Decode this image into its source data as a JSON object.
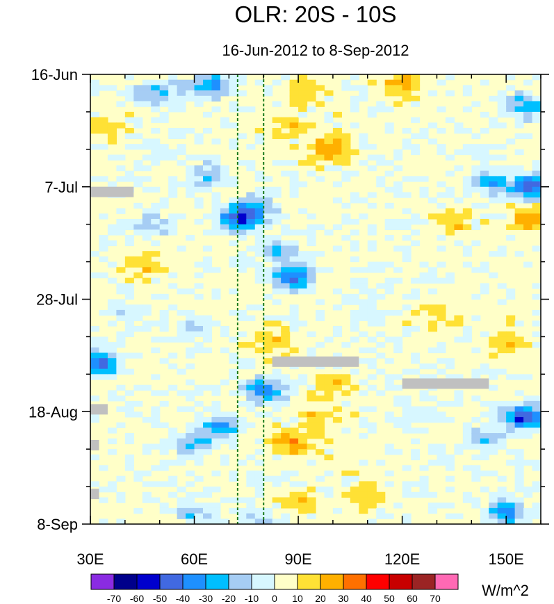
{
  "chart_data": {
    "type": "heatmap",
    "title": "OLR: 20S - 10S",
    "subtitle": "16-Jun-2012 to 8-Sep-2012",
    "x_axis": {
      "range": [
        30,
        160
      ],
      "ticks": [
        {
          "value": 30,
          "label": "30E"
        },
        {
          "value": 60,
          "label": "60E"
        },
        {
          "value": 90,
          "label": "90E"
        },
        {
          "value": 120,
          "label": "120E"
        },
        {
          "value": 150,
          "label": "150E"
        }
      ],
      "minor_step": 10
    },
    "y_axis": {
      "range_days": [
        0,
        84
      ],
      "direction": "time increases downward",
      "ticks": [
        {
          "value": 0,
          "label": "16-Jun"
        },
        {
          "value": 21,
          "label": "7-Jul"
        },
        {
          "value": 42,
          "label": "28-Jul"
        },
        {
          "value": 63,
          "label": "18-Aug"
        },
        {
          "value": 84,
          "label": "8-Sep"
        }
      ],
      "minor_step": 7
    },
    "reference_lines_lon": [
      72.5,
      80
    ],
    "colorbar": {
      "units": "W/m^2",
      "levels": [
        -70,
        -60,
        -50,
        -40,
        -30,
        -20,
        -10,
        0,
        10,
        20,
        30,
        40,
        50,
        60,
        70
      ],
      "colors": [
        "#8a2be2",
        "#00008b",
        "#0000cd",
        "#4169e1",
        "#1e90ff",
        "#00bfff",
        "#a6cdf4",
        "#d7f7ff",
        "#ffffc8",
        "#ffe135",
        "#ffb000",
        "#ff7000",
        "#ff0000",
        "#c80000",
        "#9b2424",
        "#ff69b4"
      ]
    },
    "missing_color": "#c0c0c0",
    "missing_segments": [
      {
        "lon": [
          30,
          42.5
        ],
        "day": 21.9
      },
      {
        "lon": [
          82.5,
          107.5
        ],
        "day": 53.6
      },
      {
        "lon": [
          120,
          145
        ],
        "day": 57.7
      },
      {
        "lon": [
          30,
          35
        ],
        "day": 62.5
      },
      {
        "lon": [
          30,
          32.5
        ],
        "day": 69.2
      },
      {
        "lon": [
          30,
          32.5
        ],
        "day": 78.3
      }
    ],
    "anomaly_features": [
      {
        "lon": 55,
        "day": 3,
        "value": -10
      },
      {
        "lon": 65,
        "day": 2,
        "value": -35
      },
      {
        "lon": 48,
        "day": 4,
        "value": -25
      },
      {
        "lon": 93,
        "day": 3,
        "value": 15
      },
      {
        "lon": 120,
        "day": 2,
        "value": 20
      },
      {
        "lon": 155,
        "day": 6,
        "value": -30
      },
      {
        "lon": 99,
        "day": 14,
        "value": 30
      },
      {
        "lon": 88,
        "day": 10,
        "value": 12
      },
      {
        "lon": 35,
        "day": 10,
        "value": 12
      },
      {
        "lon": 64,
        "day": 19,
        "value": -25
      },
      {
        "lon": 73,
        "day": 27,
        "value": -55
      },
      {
        "lon": 78,
        "day": 25,
        "value": -25
      },
      {
        "lon": 84,
        "day": 33,
        "value": -25
      },
      {
        "lon": 89,
        "day": 38,
        "value": -45
      },
      {
        "lon": 157,
        "day": 21,
        "value": -55
      },
      {
        "lon": 145,
        "day": 20,
        "value": -30
      },
      {
        "lon": 157,
        "day": 27,
        "value": 25
      },
      {
        "lon": 135,
        "day": 28,
        "value": 12
      },
      {
        "lon": 47,
        "day": 28,
        "value": -20
      },
      {
        "lon": 40,
        "day": 45,
        "value": -15
      },
      {
        "lon": 60,
        "day": 47,
        "value": -15
      },
      {
        "lon": 33,
        "day": 54,
        "value": -45
      },
      {
        "lon": 83,
        "day": 50,
        "value": 15
      },
      {
        "lon": 100,
        "day": 58,
        "value": 15
      },
      {
        "lon": 80,
        "day": 59,
        "value": -40
      },
      {
        "lon": 67,
        "day": 66,
        "value": -35
      },
      {
        "lon": 59,
        "day": 69,
        "value": -25
      },
      {
        "lon": 88,
        "day": 69,
        "value": 25
      },
      {
        "lon": 96,
        "day": 64,
        "value": 15
      },
      {
        "lon": 155,
        "day": 64,
        "value": -55
      },
      {
        "lon": 145,
        "day": 68,
        "value": -20
      },
      {
        "lon": 125,
        "day": 63,
        "value": -10
      },
      {
        "lon": 150,
        "day": 82,
        "value": -35
      },
      {
        "lon": 110,
        "day": 79,
        "value": 15
      },
      {
        "lon": 90,
        "day": 80,
        "value": 15
      },
      {
        "lon": 60,
        "day": 82,
        "value": -20
      },
      {
        "lon": 80,
        "day": 84,
        "value": -20
      },
      {
        "lon": 45,
        "day": 36,
        "value": 12
      },
      {
        "lon": 110,
        "day": 44,
        "value": -12
      },
      {
        "lon": 130,
        "day": 46,
        "value": 12
      },
      {
        "lon": 50,
        "day": 15,
        "value": -10
      },
      {
        "lon": 150,
        "day": 50,
        "value": 12
      }
    ]
  }
}
